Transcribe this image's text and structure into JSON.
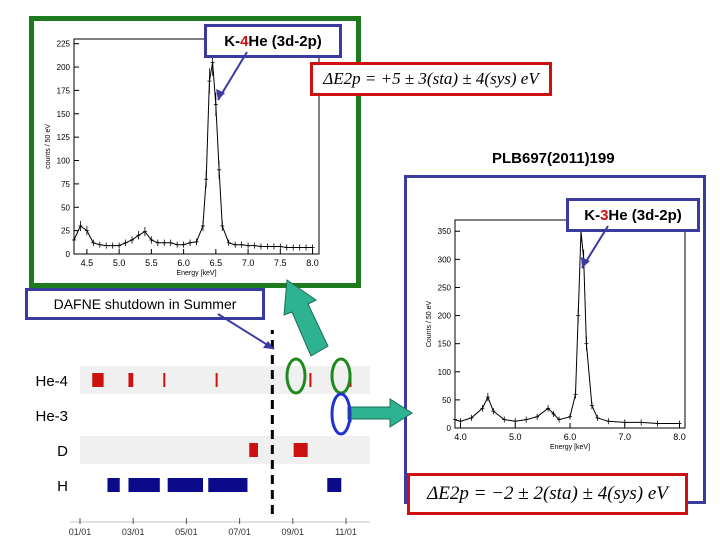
{
  "top_plot": {
    "label_prefix": "K-",
    "label_num": "4",
    "label_suffix": "He (3d-2p)",
    "formula": "ΔE2p = +5 ± 3(sta) ± 4(sys) eV",
    "ylabel": "counts / 50 eV",
    "xlabel": "Energy [keV]",
    "y_ticks": [
      "0",
      "25",
      "50",
      "75",
      "100",
      "125",
      "150",
      "175",
      "200",
      "225"
    ],
    "x_ticks": [
      "4.5",
      "5.0",
      "5.5",
      "6.0",
      "6.5",
      "7.0",
      "7.5",
      "8.0"
    ],
    "frame_color": "#1e7a1e"
  },
  "bottom_plot": {
    "label_prefix": "K-",
    "label_num": "3",
    "label_suffix": "He (3d-2p)",
    "reference": "PLB697(2011)199",
    "formula": "ΔE2p = −2 ± 2(sta) ± 4(sys) eV",
    "ylabel": "Counts / 50 eV",
    "xlabel": "Energy [keV]",
    "y_ticks": [
      "0",
      "50",
      "100",
      "150",
      "200",
      "250",
      "300",
      "350"
    ],
    "x_ticks": [
      "4.0",
      "5.0",
      "6.0",
      "7.0",
      "8.0"
    ],
    "frame_color": "#3a3aa0"
  },
  "timeline": {
    "callout": "DAFNE shutdown in Summer",
    "rows": [
      "He-4",
      "He-3",
      "D",
      "H"
    ],
    "dates": [
      "01/01",
      "03/01",
      "05/01",
      "07/01",
      "09/01",
      "11/01"
    ]
  },
  "chart_data": [
    {
      "type": "line",
      "title": "K-4He (3d-2p)",
      "xlabel": "Energy [keV]",
      "ylabel": "counts / 50 eV",
      "xlim": [
        4.3,
        8.1
      ],
      "ylim": [
        0,
        230
      ],
      "grid": false,
      "x": [
        4.3,
        4.4,
        4.5,
        4.6,
        4.7,
        4.8,
        4.9,
        5.0,
        5.1,
        5.2,
        5.3,
        5.4,
        5.5,
        5.6,
        5.7,
        5.8,
        5.9,
        6.0,
        6.1,
        6.2,
        6.3,
        6.35,
        6.4,
        6.45,
        6.5,
        6.55,
        6.6,
        6.7,
        6.8,
        6.9,
        7.0,
        7.1,
        7.2,
        7.3,
        7.4,
        7.5,
        7.6,
        7.7,
        7.8,
        7.9,
        8.0
      ],
      "y": [
        15,
        30,
        25,
        12,
        10,
        9,
        9,
        9,
        12,
        15,
        20,
        24,
        15,
        12,
        12,
        12,
        10,
        10,
        12,
        13,
        30,
        80,
        185,
        205,
        160,
        90,
        30,
        12,
        10,
        10,
        9,
        9,
        8,
        8,
        8,
        8,
        7,
        7,
        7,
        7,
        7
      ]
    },
    {
      "type": "line",
      "title": "K-3He (3d-2p)",
      "xlabel": "Energy [keV]",
      "ylabel": "Counts / 50 eV",
      "xlim": [
        3.9,
        8.1
      ],
      "ylim": [
        0,
        370
      ],
      "grid": false,
      "x": [
        3.9,
        4.0,
        4.2,
        4.4,
        4.5,
        4.6,
        4.8,
        5.0,
        5.2,
        5.4,
        5.6,
        5.7,
        5.8,
        6.0,
        6.1,
        6.15,
        6.2,
        6.25,
        6.3,
        6.4,
        6.5,
        6.7,
        7.0,
        7.3,
        7.6,
        8.0
      ],
      "y": [
        15,
        12,
        18,
        35,
        55,
        30,
        15,
        12,
        15,
        20,
        35,
        25,
        15,
        20,
        60,
        200,
        350,
        300,
        150,
        40,
        18,
        12,
        10,
        10,
        8,
        8
      ]
    },
    {
      "type": "timeline",
      "title": "",
      "rows": [
        "He-4",
        "He-3",
        "D",
        "H"
      ],
      "xlabel": "",
      "x_ticks": [
        "01/01",
        "03/01",
        "05/01",
        "07/01",
        "09/01",
        "11/01"
      ],
      "segments": [
        {
          "row": "He-4",
          "start": "01/15",
          "end": "01/28",
          "color": "#cc1111"
        },
        {
          "row": "He-4",
          "start": "02/26",
          "end": "03/01",
          "color": "#cc1111"
        },
        {
          "row": "He-4",
          "start": "04/05",
          "end": "04/06",
          "color": "#cc1111"
        },
        {
          "row": "He-4",
          "start": "06/04",
          "end": "06/06",
          "color": "#cc1111"
        },
        {
          "row": "He-4",
          "start": "09/20",
          "end": "09/21",
          "color": "#cc1111"
        },
        {
          "row": "He-4",
          "start": "11/05",
          "end": "11/06",
          "color": "#cc1111"
        },
        {
          "row": "He-3",
          "start": "11/05",
          "end": "11/06",
          "color": "#2233aa"
        },
        {
          "row": "D",
          "start": "07/12",
          "end": "07/22",
          "color": "#cc1111"
        },
        {
          "row": "D",
          "start": "09/02",
          "end": "09/18",
          "color": "#cc1111"
        },
        {
          "row": "H",
          "start": "02/02",
          "end": "02/16",
          "color": "#0a0a8a"
        },
        {
          "row": "H",
          "start": "02/26",
          "end": "04/01",
          "color": "#0a0a8a"
        },
        {
          "row": "H",
          "start": "04/10",
          "end": "05/20",
          "color": "#0a0a8a"
        },
        {
          "row": "H",
          "start": "05/26",
          "end": "07/10",
          "color": "#0a0a8a"
        },
        {
          "row": "H",
          "start": "10/10",
          "end": "10/26",
          "color": "#0a0a8a"
        }
      ],
      "annotations": [
        "DAFNE shutdown in Summer"
      ]
    }
  ]
}
